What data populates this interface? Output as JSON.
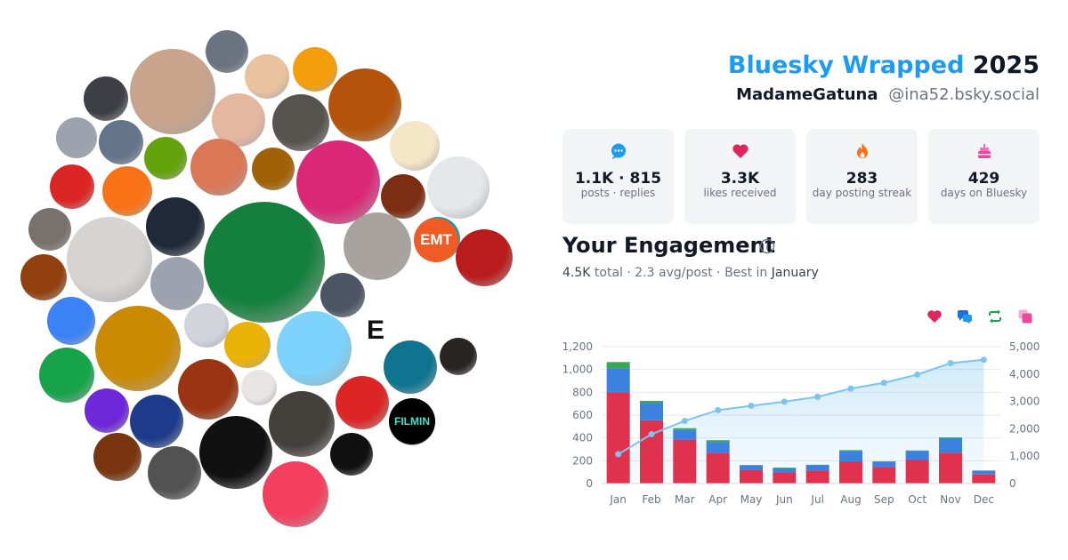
{
  "header": {
    "brand": "Bluesky Wrapped",
    "year": "2025",
    "display_name": "MadameGatuna",
    "handle": "@ina52.bsky.social"
  },
  "stats": [
    {
      "icon": "chat-bubble-icon",
      "value": "1.1K · 815",
      "label": "posts · replies",
      "color": "#1d9bf0"
    },
    {
      "icon": "heart-icon",
      "value": "3.3K",
      "label": "likes received",
      "color": "#e0245e"
    },
    {
      "icon": "flame-icon",
      "value": "283",
      "label": "day posting streak",
      "color": "#f97316"
    },
    {
      "icon": "cake-icon",
      "value": "429",
      "label": "days on Bluesky",
      "color": "#ec4899"
    }
  ],
  "engagement": {
    "title": "Your Engagement",
    "total": "4.5K",
    "total_word": "total",
    "avg": "2.3 avg/post",
    "best_prefix": "Best in",
    "best_month": "January"
  },
  "legend_icons": [
    {
      "name": "heart-icon",
      "color": "#e0245e"
    },
    {
      "name": "chat-bubbles-icon",
      "color": "#1d9bf0"
    },
    {
      "name": "repost-icon",
      "color": "#16a34a"
    },
    {
      "name": "quote-icon",
      "color": "#ec4899"
    }
  ],
  "colors": {
    "likes": "#e0314f",
    "replies": "#3b82e0",
    "reposts": "#35a853",
    "cumulative": "#7cc4ee"
  },
  "chart_data": {
    "type": "bar",
    "categories": [
      "Jan",
      "Feb",
      "Mar",
      "Apr",
      "May",
      "Jun",
      "Jul",
      "Aug",
      "Sep",
      "Oct",
      "Nov",
      "Dec"
    ],
    "series": [
      {
        "values": [
          795,
          555,
          385,
          270,
          120,
          100,
          115,
          195,
          145,
          210,
          270,
          80
        ]
      },
      {
        "values": [
          215,
          150,
          85,
          95,
          38,
          35,
          45,
          90,
          45,
          75,
          130,
          30
        ]
      },
      {
        "values": [
          55,
          20,
          15,
          15,
          5,
          5,
          5,
          8,
          5,
          5,
          5,
          5
        ]
      }
    ],
    "cumulative": [
      1070,
      1800,
      2290,
      2680,
      2840,
      2990,
      3170,
      3470,
      3680,
      3980,
      4400,
      4520
    ],
    "ylim": [
      0,
      1200
    ],
    "yticks": [
      "0",
      "200",
      "400",
      "600",
      "800",
      "1,000",
      "1,200"
    ],
    "y2lim": [
      0,
      5000
    ],
    "y2ticks": [
      "0",
      "1,000",
      "2,000",
      "3,000",
      "4,000",
      "5,000"
    ],
    "grid": true
  },
  "avatars": [
    {
      "c": "#c9a38c"
    },
    {
      "c": "#6b7280"
    },
    {
      "c": "#e8c39e"
    },
    {
      "c": "#f59e0b"
    },
    {
      "c": "#3f3f46"
    },
    {
      "c": "#b45309"
    },
    {
      "c": "#e5b7a0"
    },
    {
      "c": "#57534e"
    },
    {
      "c": "#f5e6c8"
    },
    {
      "c": "#9ca3af"
    },
    {
      "c": "#64748b"
    },
    {
      "c": "#65a30d"
    },
    {
      "c": "#d97757"
    },
    {
      "c": "#a16207"
    },
    {
      "c": "#db2777"
    },
    {
      "c": "#7c2d12"
    },
    {
      "c": "#e5e7eb"
    },
    {
      "c": "#dc2626"
    },
    {
      "c": "#f97316"
    },
    {
      "c": "#78716c"
    },
    {
      "c": "#1f2937"
    },
    {
      "c": "#15803d"
    },
    {
      "c": "#d6d3d1"
    },
    {
      "c": "#a8a29e"
    },
    {
      "c": "#0891b2"
    },
    {
      "c": "#b91c1c"
    },
    {
      "c": "#9ca3af"
    },
    {
      "c": "#4b5563"
    },
    {
      "c": "#92400e"
    },
    {
      "c": "#3b82f6"
    },
    {
      "c": "#d1d5db"
    },
    {
      "c": "#eab308"
    },
    {
      "c": "#7dd3fc"
    },
    {
      "c": "#ca8a04"
    },
    {
      "c": "#0e7490"
    },
    {
      "c": "#292524"
    },
    {
      "c": "#16a34a"
    },
    {
      "c": "#9a3412"
    },
    {
      "c": "#e7e5e4"
    },
    {
      "c": "#6d28d9"
    },
    {
      "c": "#1e3a8a"
    },
    {
      "c": "#dc2626"
    },
    {
      "c": "#a3a3a3"
    },
    {
      "c": "#44403c"
    },
    {
      "c": "#78350f"
    },
    {
      "c": "#525252"
    },
    {
      "c": "#111111"
    },
    {
      "c": "#111111"
    },
    {
      "c": "#f43f5e"
    },
    {
      "c": "#737373"
    },
    {
      "c": "#fde68a"
    }
  ],
  "avatar_glyphs": [
    "EMT",
    "E",
    "FILMIN"
  ]
}
